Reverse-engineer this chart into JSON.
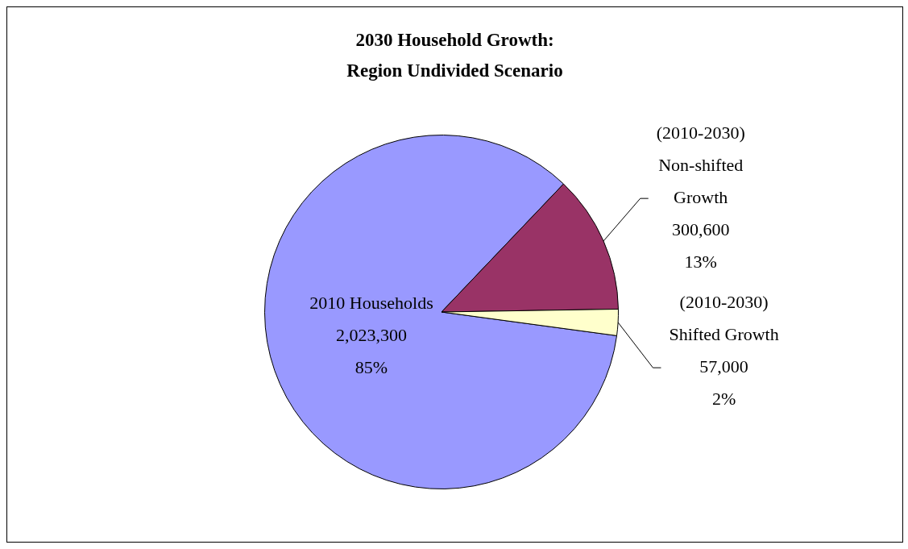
{
  "chart_data": {
    "type": "pie",
    "title": "2030 Household Growth:\nRegion Undivided Scenario",
    "categories": [
      "2010 Households",
      "(2010-2030)\nNon-shifted\nGrowth",
      "(2010-2030)\nShifted Growth"
    ],
    "values": [
      2023300,
      300600,
      57000
    ],
    "colors": [
      "#9999ff",
      "#993366",
      "#ffffcc"
    ],
    "value_labels": [
      "2,023,300\n85%",
      "300,600\n13%",
      "57,000\n2%"
    ],
    "legend": false
  }
}
